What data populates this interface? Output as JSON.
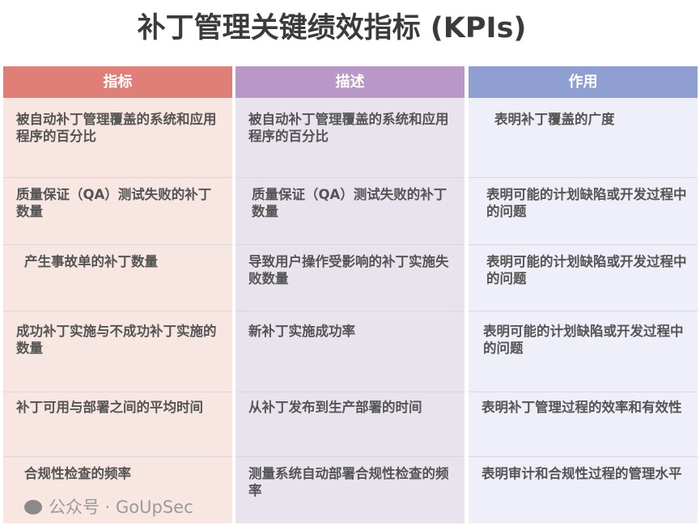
{
  "title": "补丁管理关键绩效指标 (KPIs)",
  "headers": [
    "指标",
    "描述",
    "作用"
  ],
  "rows": [
    {
      "metric": "被自动补丁管理覆盖的系统和应用程序的百分比",
      "description": "被自动补丁管理覆盖的系统和应用程序的百分比",
      "purpose": "表明补丁覆盖的广度"
    },
    {
      "metric": "质量保证（QA）测试失败的补丁数量",
      "description": "质量保证（QA）测试失败的补丁数量",
      "purpose": "表明可能的计划缺陷或开发过程中的问题"
    },
    {
      "metric": "产生事故单的补丁数量",
      "description": "导致用户操作受影响的补丁实施失败数量",
      "purpose": "表明可能的计划缺陷或开发过程中的问题"
    },
    {
      "metric": "成功补丁实施与不成功补丁实施的数量",
      "description": "新补丁实施成功率",
      "purpose": "表明可能的计划缺陷或开发过程中的问题"
    },
    {
      "metric": "补丁可用与部署之间的平均时间",
      "description": "从补丁发布到生产部署的时间",
      "purpose": "表明补丁管理过程的效率和有效性"
    },
    {
      "metric": "合规性检查的频率",
      "description": "测量系统自动部署合规性检查的频率",
      "purpose": "表明审计和合规性过程的管理水平"
    }
  ],
  "watermark": "公众号 · GoUpSec",
  "colors": {
    "header_metric": "#e07f78",
    "header_description": "#b997c6",
    "header_purpose": "#8f9fd1"
  }
}
